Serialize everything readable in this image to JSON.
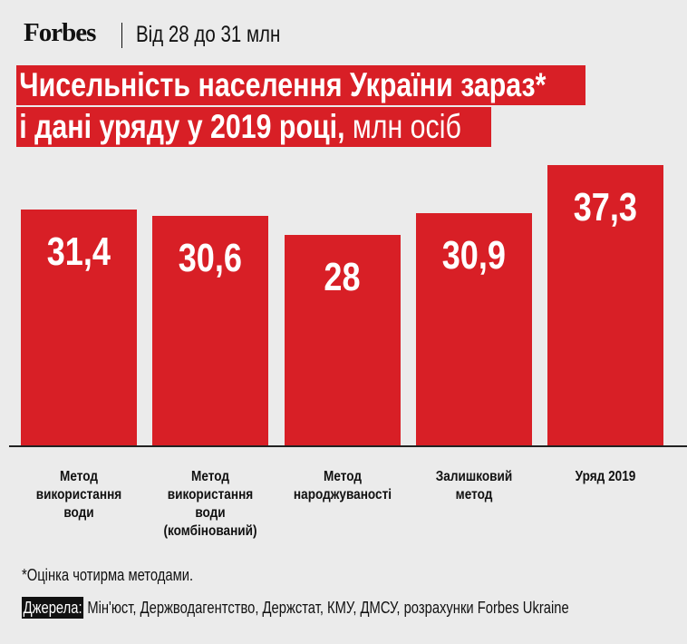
{
  "header": {
    "logo": "Forbes",
    "subtitle": "Від 28 до 31 млн"
  },
  "chart_data": {
    "type": "bar",
    "title_line1": "Чисельність населення України зараз*",
    "title_line2_bold": "і дані уряду у 2019 році,",
    "title_line2_unit": " млн осіб",
    "categories": [
      [
        "Метод",
        "використання",
        "води"
      ],
      [
        "Метод",
        "використання",
        "води",
        "(комбінований)"
      ],
      [
        "Метод",
        "народжуваності"
      ],
      [
        "Залишковий",
        "метод"
      ],
      [
        "Уряд 2019"
      ]
    ],
    "values": [
      31.4,
      30.6,
      28,
      30.9,
      37.3
    ],
    "value_labels": [
      "31,4",
      "30,6",
      "28",
      "30,9",
      "37,3"
    ],
    "ylim": [
      0,
      37.3
    ],
    "colors": {
      "bar": "#d81f26"
    }
  },
  "footer": {
    "note": "*Оцінка чотирма методами.",
    "sources_label": "Джерела:",
    "sources": " Мін'юст, Держводагентство, Держстат, КМУ, ДМСУ, розрахунки Forbes Ukraine"
  }
}
